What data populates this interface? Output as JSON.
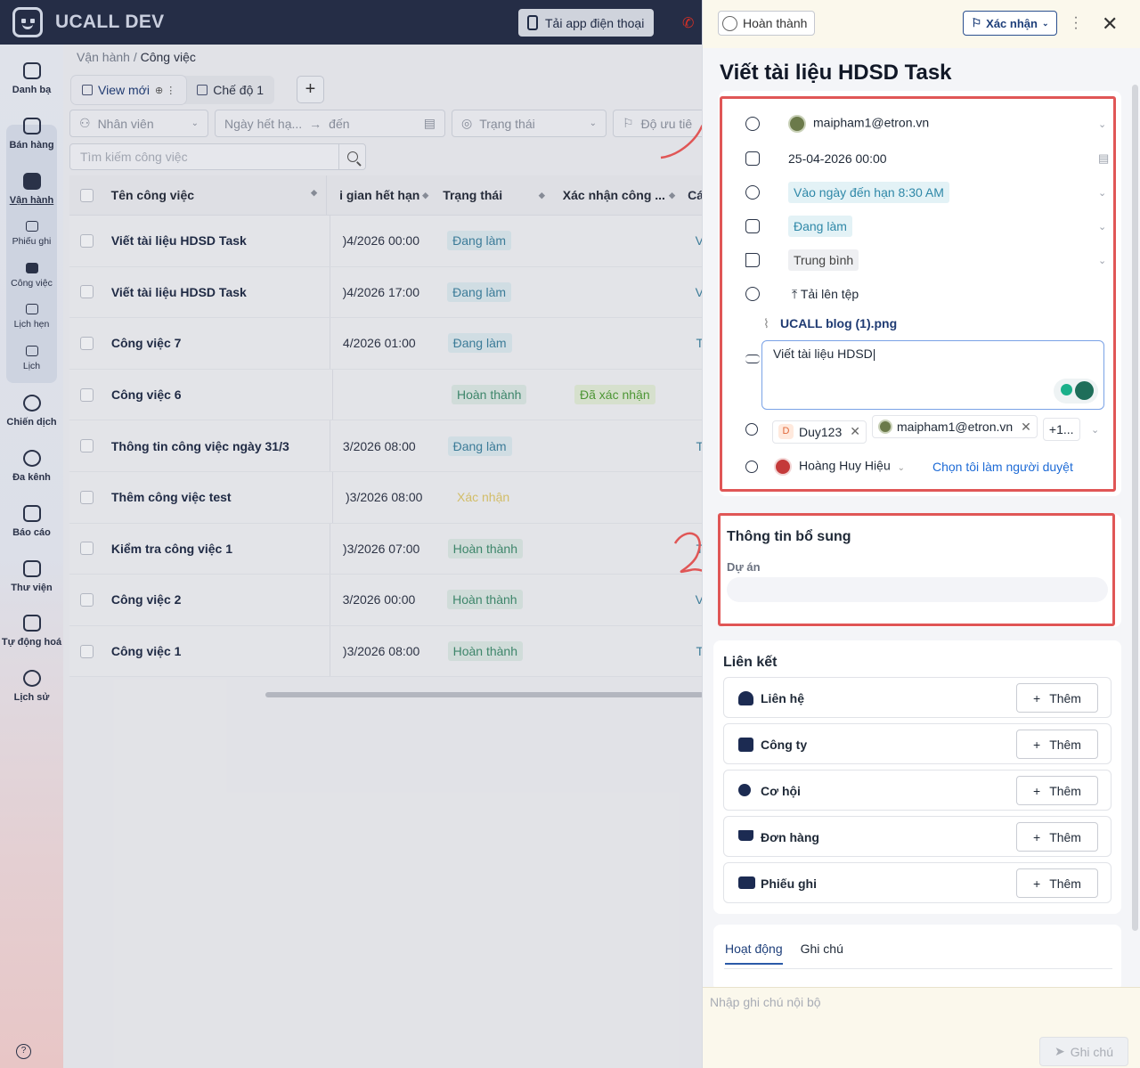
{
  "app": {
    "name": "UCALL DEV",
    "download_app": "Tải app điện thoại"
  },
  "sidebar": {
    "items": [
      {
        "label": "Danh bạ"
      },
      {
        "label": "Bán hàng"
      },
      {
        "label": "Vận hành"
      },
      {
        "label": "Phiếu ghi"
      },
      {
        "label": "Công việc"
      },
      {
        "label": "Lịch hẹn"
      },
      {
        "label": "Lịch"
      },
      {
        "label": "Chiến dịch"
      },
      {
        "label": "Đa kênh"
      },
      {
        "label": "Báo cáo"
      },
      {
        "label": "Thư viện"
      },
      {
        "label": "Tự động hoá"
      },
      {
        "label": "Lịch sử"
      }
    ]
  },
  "breadcrumb": {
    "parent": "Vận hành",
    "sep": "/",
    "current": "Công việc"
  },
  "views": {
    "tabs": [
      {
        "label": "View mới"
      },
      {
        "label": "Chế độ 1"
      }
    ],
    "add": "+"
  },
  "filters": {
    "employee": "Nhân viên",
    "due_from": "Ngày hết hạ...",
    "arrow": "→",
    "due_to": "đến",
    "status": "Trạng thái",
    "priority": "Độ ưu tiê"
  },
  "search": {
    "placeholder": "Tìm kiếm công việc"
  },
  "table": {
    "headers": {
      "name": "Tên công việc",
      "due": "i gian hết hạn",
      "status": "Trạng thái",
      "confirm": "Xác nhận công ...",
      "more": "Cá"
    },
    "rows": [
      {
        "name": "Viết tài liệu HDSD Task",
        "due": ")4/2026 00:00",
        "status": "Đang làm",
        "status_type": "doing",
        "confirm": "",
        "more": "V"
      },
      {
        "name": "Viết tài liệu HDSD Task",
        "due": ")4/2026 17:00",
        "status": "Đang làm",
        "status_type": "doing",
        "confirm": "",
        "more": "V"
      },
      {
        "name": "Công việc 7",
        "due": "4/2026 01:00",
        "status": "Đang làm",
        "status_type": "doing",
        "confirm": "",
        "more": "T"
      },
      {
        "name": "Công việc 6",
        "due": "",
        "status": "Hoàn thành",
        "status_type": "done",
        "confirm": "Đã xác nhận",
        "more": ""
      },
      {
        "name": "Thông tin công việc ngày 31/3",
        "due": "3/2026 08:00",
        "status": "Đang làm",
        "status_type": "doing",
        "confirm": "",
        "more": "T"
      },
      {
        "name": "Thêm công việc test",
        "due": ")3/2026 08:00",
        "status": "Xác nhận",
        "status_type": "confirm",
        "confirm": "",
        "more": ""
      },
      {
        "name": "Kiểm tra công việc 1",
        "due": ")3/2026 07:00",
        "status": "Hoàn thành",
        "status_type": "done",
        "confirm": "",
        "more": "T"
      },
      {
        "name": "Công việc 2",
        "due": "3/2026 00:00",
        "status": "Hoàn thành",
        "status_type": "done",
        "confirm": "",
        "more": "V"
      },
      {
        "name": "Công việc 1",
        "due": ")3/2026 08:00",
        "status": "Hoàn thành",
        "status_type": "done",
        "confirm": "",
        "more": "T"
      }
    ]
  },
  "panel": {
    "complete_btn": "Hoàn thành",
    "confirm_btn": "Xác nhận",
    "title": "Viết tài liệu HDSD Task",
    "assignee": "maipham1@etron.vn",
    "due": "25-04-2026 00:00",
    "reminder": "Vào ngày đến hạn 8:30 AM",
    "status": "Đang làm",
    "priority": "Trung bình",
    "upload": "Tải lên tệp",
    "attachment": "UCALL blog (1).png",
    "description": "Viết tài liệu HDSD",
    "watchers": [
      {
        "name": "Duy123",
        "initial": "D"
      },
      {
        "name": "maipham1@etron.vn"
      }
    ],
    "watchers_more": "+1...",
    "approver": "Hoàng Huy Hiệu",
    "approver_self": "Chọn tôi làm người duyệt",
    "extra_title": "Thông tin bổ sung",
    "project_label": "Dự án",
    "links_title": "Liên kết",
    "links": [
      {
        "label": "Liên hệ"
      },
      {
        "label": "Công ty"
      },
      {
        "label": "Cơ hội"
      },
      {
        "label": "Đơn hàng"
      },
      {
        "label": "Phiếu ghi"
      }
    ],
    "add_label": "Thêm",
    "tabs": [
      {
        "label": "Hoạt động"
      },
      {
        "label": "Ghi chú"
      }
    ],
    "note_placeholder": "Nhập ghi chú nội bộ",
    "send": "Ghi chú"
  },
  "colors": {
    "topbar": "#252d46",
    "accent": "#1e3f7a",
    "annotation": "#e05656",
    "doing": "#3d7f9c",
    "done": "#3f8a6d"
  },
  "icons": [
    "search-icon",
    "phone-icon",
    "call-icon",
    "user-icon",
    "calendar-icon",
    "bell-icon",
    "board-icon",
    "flag-icon",
    "attachment-icon",
    "text-icon",
    "group-icon",
    "approver-icon",
    "close-icon",
    "kebab-icon",
    "send-icon"
  ]
}
